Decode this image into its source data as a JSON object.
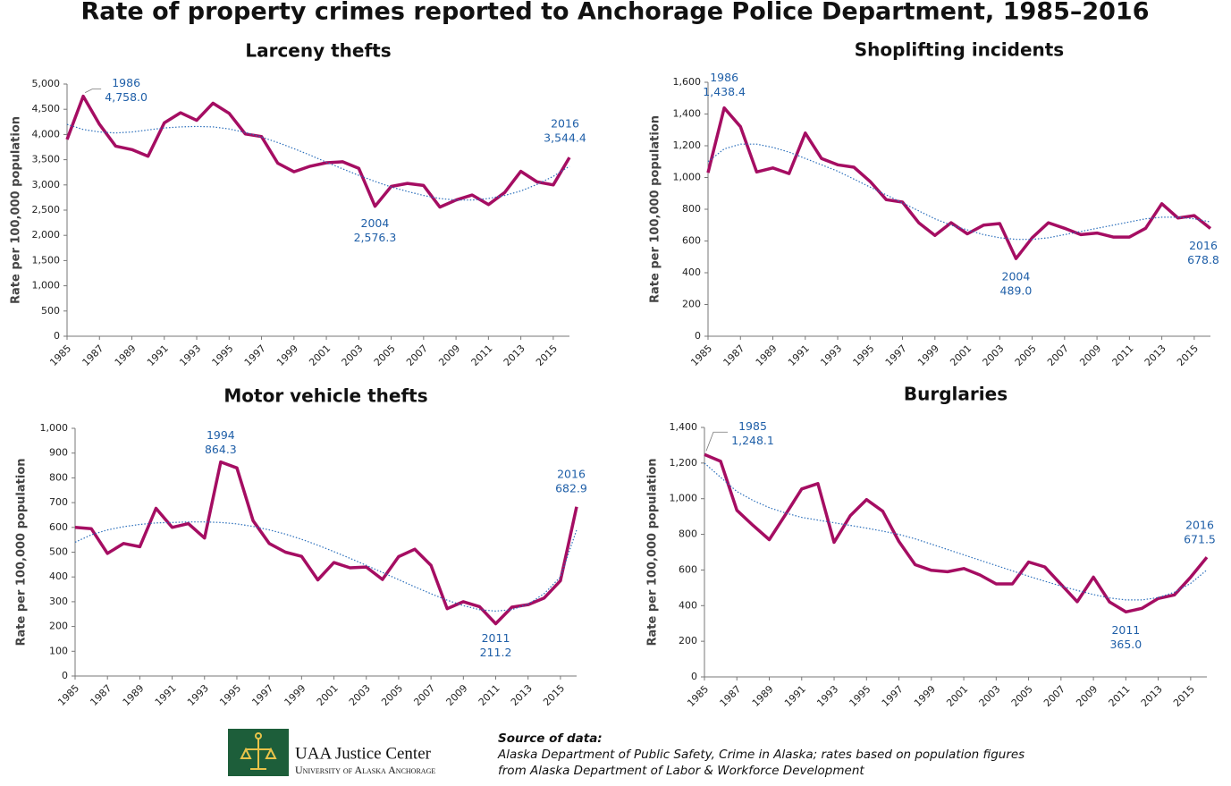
{
  "title": "Rate of property crimes reported to Anchorage Police Department, 1985–2016",
  "chart_data": [
    {
      "type": "line",
      "title": "Larceny thefts",
      "ylabel": "Rate per 100,000 population",
      "x": [
        1985,
        1986,
        1987,
        1988,
        1989,
        1990,
        1991,
        1992,
        1993,
        1994,
        1995,
        1996,
        1997,
        1998,
        1999,
        2000,
        2001,
        2002,
        2003,
        2004,
        2005,
        2006,
        2007,
        2008,
        2009,
        2010,
        2011,
        2012,
        2013,
        2014,
        2015,
        2016
      ],
      "xlim": [
        1985,
        2016
      ],
      "xticks": [
        1985,
        1987,
        1989,
        1991,
        1993,
        1995,
        1997,
        1999,
        2001,
        2003,
        2005,
        2007,
        2009,
        2011,
        2013,
        2015
      ],
      "ylim": [
        0,
        5000
      ],
      "yticks": [
        0,
        500,
        {
          "value": 1000,
          "label": "1,000"
        },
        {
          "value": 1500,
          "label": "1,500"
        },
        {
          "value": 2000,
          "label": "2,000"
        },
        {
          "value": 2500,
          "label": "2,500"
        },
        {
          "value": 3000,
          "label": "3,000"
        },
        {
          "value": 3500,
          "label": "3,500"
        },
        {
          "value": 4000,
          "label": "4,000"
        },
        {
          "value": 4500,
          "label": "4,500"
        },
        {
          "value": 5000,
          "label": "5,000"
        }
      ],
      "series": [
        {
          "color": "#a50d62",
          "values": [
            3900,
            4758,
            4200,
            3770,
            3700,
            3570,
            4230,
            4430,
            4280,
            4620,
            4420,
            4010,
            3960,
            3430,
            3260,
            3370,
            3440,
            3460,
            3330,
            2576.3,
            2970,
            3030,
            2990,
            2560,
            2700,
            2800,
            2610,
            2850,
            3270,
            3060,
            3000,
            3544.4
          ],
          "value_labels": [
            null,
            "4,758.0",
            null,
            null,
            null,
            null,
            null,
            null,
            null,
            null,
            null,
            null,
            null,
            null,
            null,
            null,
            null,
            null,
            null,
            "2,576.3",
            null,
            null,
            null,
            null,
            null,
            null,
            null,
            null,
            null,
            null,
            null,
            "3,544.4"
          ]
        },
        {
          "color": "#2a6ebb",
          "style": "dotted",
          "values": [
            4200,
            4100,
            4050,
            4030,
            4050,
            4090,
            4130,
            4150,
            4160,
            4150,
            4110,
            4040,
            3950,
            3840,
            3720,
            3590,
            3450,
            3320,
            3190,
            3070,
            2960,
            2870,
            2790,
            2730,
            2700,
            2700,
            2730,
            2790,
            2880,
            3010,
            3170,
            3370
          ]
        }
      ]
    },
    {
      "type": "line",
      "title": "Shoplifting incidents",
      "ylabel": "Rate per 100,000 population",
      "x": [
        1985,
        1986,
        1987,
        1988,
        1989,
        1990,
        1991,
        1992,
        1993,
        1994,
        1995,
        1996,
        1997,
        1998,
        1999,
        2000,
        2001,
        2002,
        2003,
        2004,
        2005,
        2006,
        2007,
        2008,
        2009,
        2010,
        2011,
        2012,
        2013,
        2014,
        2015,
        2016
      ],
      "xlim": [
        1985,
        2016
      ],
      "xticks": [
        1985,
        1987,
        1989,
        1991,
        1993,
        1995,
        1997,
        1999,
        2001,
        2003,
        2005,
        2007,
        2009,
        2011,
        2013,
        2015
      ],
      "ylim": [
        0,
        1600
      ],
      "yticks": [
        0,
        200,
        400,
        600,
        800,
        {
          "value": 1000,
          "label": "1,000"
        },
        {
          "value": 1200,
          "label": "1,200"
        },
        {
          "value": 1400,
          "label": "1,400"
        },
        {
          "value": 1600,
          "label": "1,600"
        }
      ],
      "series": [
        {
          "color": "#a50d62",
          "values": [
            1030,
            1438.4,
            1320,
            1035,
            1060,
            1025,
            1280,
            1120,
            1080,
            1065,
            975,
            860,
            845,
            715,
            635,
            715,
            645,
            700,
            710,
            489.0,
            620,
            715,
            680,
            640,
            650,
            625,
            625,
            680,
            835,
            745,
            760,
            678.8
          ],
          "value_labels": [
            null,
            "1,438.4",
            null,
            null,
            null,
            null,
            null,
            null,
            null,
            null,
            null,
            null,
            null,
            null,
            null,
            null,
            null,
            null,
            null,
            "489.0",
            null,
            null,
            null,
            null,
            null,
            null,
            null,
            null,
            null,
            null,
            null,
            "678.8"
          ]
        },
        {
          "color": "#2a6ebb",
          "style": "dotted",
          "values": [
            1100,
            1180,
            1210,
            1210,
            1190,
            1160,
            1120,
            1080,
            1040,
            990,
            940,
            890,
            840,
            790,
            740,
            700,
            670,
            640,
            620,
            610,
            610,
            620,
            640,
            660,
            680,
            700,
            720,
            740,
            750,
            750,
            740,
            720
          ]
        }
      ]
    },
    {
      "type": "line",
      "title": "Motor vehicle thefts",
      "ylabel": "Rate per 100,000 population",
      "x": [
        1985,
        1986,
        1987,
        1988,
        1989,
        1990,
        1991,
        1992,
        1993,
        1994,
        1995,
        1996,
        1997,
        1998,
        1999,
        2000,
        2001,
        2002,
        2003,
        2004,
        2005,
        2006,
        2007,
        2008,
        2009,
        2010,
        2011,
        2012,
        2013,
        2014,
        2015,
        2016
      ],
      "xlim": [
        1985,
        2016
      ],
      "xticks": [
        1985,
        1987,
        1989,
        1991,
        1993,
        1995,
        1997,
        1999,
        2001,
        2003,
        2005,
        2007,
        2009,
        2011,
        2013,
        2015
      ],
      "ylim": [
        0,
        1000
      ],
      "yticks": [
        0,
        100,
        200,
        300,
        400,
        500,
        600,
        700,
        800,
        900,
        {
          "value": 1000,
          "label": "1,000"
        }
      ],
      "series": [
        {
          "color": "#a50d62",
          "values": [
            600,
            595,
            495,
            535,
            522,
            677,
            600,
            615,
            557,
            864.3,
            840,
            627,
            535,
            500,
            483,
            388,
            458,
            437,
            440,
            390,
            482,
            512,
            447,
            272,
            300,
            280,
            211.2,
            278,
            288,
            315,
            385,
            682.9
          ],
          "value_labels": [
            null,
            null,
            null,
            null,
            null,
            null,
            null,
            null,
            null,
            "864.3",
            null,
            null,
            null,
            null,
            null,
            null,
            null,
            null,
            null,
            null,
            null,
            null,
            null,
            null,
            null,
            null,
            "211.2",
            null,
            null,
            null,
            null,
            "682.9"
          ]
        },
        {
          "color": "#2a6ebb",
          "style": "dotted",
          "values": [
            540,
            570,
            590,
            603,
            612,
            618,
            620,
            622,
            622,
            620,
            614,
            604,
            590,
            573,
            552,
            528,
            502,
            475,
            447,
            418,
            389,
            360,
            332,
            306,
            284,
            268,
            262,
            268,
            290,
            333,
            400,
            590
          ]
        }
      ]
    },
    {
      "type": "line",
      "title": "Burglaries",
      "ylabel": "Rate per 100,000 population",
      "x": [
        1985,
        1986,
        1987,
        1988,
        1989,
        1990,
        1991,
        1992,
        1993,
        1994,
        1995,
        1996,
        1997,
        1998,
        1999,
        2000,
        2001,
        2002,
        2003,
        2004,
        2005,
        2006,
        2007,
        2008,
        2009,
        2010,
        2011,
        2012,
        2013,
        2014,
        2015,
        2016
      ],
      "xlim": [
        1985,
        2016
      ],
      "xticks": [
        1985,
        1987,
        1989,
        1991,
        1993,
        1995,
        1997,
        1999,
        2001,
        2003,
        2005,
        2007,
        2009,
        2011,
        2013,
        2015
      ],
      "ylim": [
        0,
        1400
      ],
      "yticks": [
        0,
        200,
        400,
        600,
        800,
        {
          "value": 1000,
          "label": "1,000"
        },
        {
          "value": 1200,
          "label": "1,200"
        },
        {
          "value": 1400,
          "label": "1,400"
        }
      ],
      "series": [
        {
          "color": "#a50d62",
          "values": [
            1248.1,
            1210,
            935,
            850,
            770,
            910,
            1055,
            1085,
            755,
            905,
            995,
            930,
            760,
            630,
            598,
            590,
            608,
            572,
            522,
            522,
            645,
            617,
            520,
            422,
            560,
            420,
            365.0,
            385,
            440,
            460,
            560,
            671.5
          ],
          "value_labels": [
            "1,248.1",
            null,
            null,
            null,
            null,
            null,
            null,
            null,
            null,
            null,
            null,
            null,
            null,
            null,
            null,
            null,
            null,
            null,
            null,
            null,
            null,
            null,
            null,
            null,
            null,
            null,
            "365.0",
            null,
            null,
            null,
            null,
            "671.5"
          ]
        },
        {
          "color": "#2a6ebb",
          "style": "dotted",
          "values": [
            1200,
            1120,
            1040,
            990,
            950,
            920,
            895,
            880,
            865,
            850,
            835,
            818,
            800,
            775,
            745,
            715,
            685,
            655,
            625,
            595,
            565,
            537,
            510,
            485,
            462,
            443,
            432,
            432,
            445,
            475,
            525,
            600
          ]
        }
      ]
    }
  ],
  "footer": {
    "logo_title": "UAA Justice Center",
    "logo_subtitle": "University of Alaska Anchorage",
    "source_heading": "Source of data:",
    "source_lines": [
      "Alaska Department of Public Safety, Crime in Alaska; rates based on population figures",
      "from Alaska Department of Labor & Workforce Development"
    ]
  }
}
